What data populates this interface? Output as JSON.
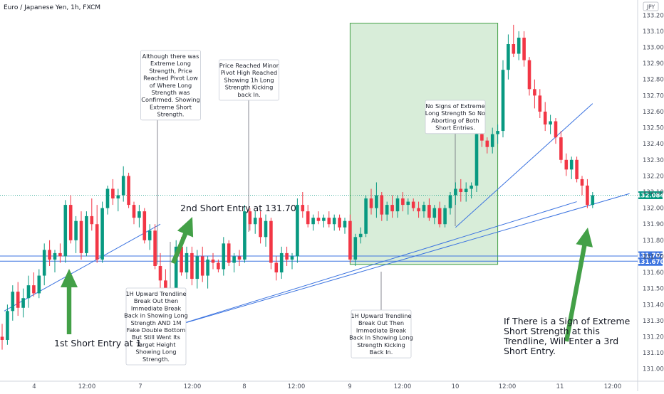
{
  "chart_data": {
    "type": "candlestick",
    "title": "Euro / Japanese Yen, 1h, FXCM",
    "currency": "JPY",
    "x_tick_labels": [
      "4",
      "12:00",
      "7",
      "12:00",
      "8",
      "12:00",
      "9",
      "12:00",
      "10",
      "12:00",
      "11",
      "12:00"
    ],
    "y_tick_labels": [
      "133.200",
      "133.100",
      "133.000",
      "132.900",
      "132.800",
      "132.700",
      "132.600",
      "132.500",
      "132.400",
      "132.300",
      "132.200",
      "132.100",
      "132.000",
      "131.900",
      "131.800",
      "131.700",
      "131.600",
      "131.500",
      "131.400",
      "131.300",
      "131.200",
      "131.100",
      "131.000"
    ],
    "ylim": [
      130.95,
      133.25
    ],
    "colors": {
      "up": "#089981",
      "down": "#f23645",
      "trendline": "#3b73e0",
      "zone_fill": "#c8e6c9",
      "zone_stroke": "#43a047",
      "arrow": "#43a047"
    },
    "last_price_label": "132.084",
    "price_levels": [
      {
        "label": "131.702",
        "value": 131.702
      },
      {
        "label": "131.670",
        "value": 131.67
      }
    ],
    "trendlines": [
      {
        "from": [
          0.4,
          131.36
        ],
        "to": [
          30,
          131.9
        ]
      },
      {
        "from": [
          32,
          131.26
        ],
        "to": [
          109,
          132.04
        ]
      },
      {
        "from": [
          32,
          131.26
        ],
        "to": [
          119,
          132.09
        ]
      },
      {
        "from": [
          86,
          131.88
        ],
        "to": [
          112,
          132.65
        ]
      }
    ],
    "zone": {
      "x0": 66,
      "x1": 94,
      "y0": 131.65,
      "y1": 133.15
    },
    "candles": [
      [
        131.2,
        131.28,
        131.12,
        131.18
      ],
      [
        131.18,
        131.4,
        131.15,
        131.36
      ],
      [
        131.36,
        131.52,
        131.3,
        131.48
      ],
      [
        131.48,
        131.54,
        131.33,
        131.38
      ],
      [
        131.38,
        131.5,
        131.32,
        131.44
      ],
      [
        131.44,
        131.58,
        131.38,
        131.52
      ],
      [
        131.52,
        131.6,
        131.45,
        131.47
      ],
      [
        131.47,
        131.62,
        131.44,
        131.58
      ],
      [
        131.58,
        131.78,
        131.52,
        131.74
      ],
      [
        131.74,
        131.8,
        131.64,
        131.68
      ],
      [
        131.68,
        131.74,
        131.6,
        131.72
      ],
      [
        131.72,
        131.78,
        131.66,
        131.7
      ],
      [
        131.7,
        132.05,
        131.66,
        132.02
      ],
      [
        132.02,
        132.08,
        131.78,
        131.8
      ],
      [
        131.8,
        131.95,
        131.72,
        131.92
      ],
      [
        131.92,
        131.98,
        131.68,
        131.72
      ],
      [
        131.72,
        131.98,
        131.7,
        131.95
      ],
      [
        131.95,
        132.06,
        131.86,
        131.9
      ],
      [
        131.9,
        132.02,
        131.66,
        131.68
      ],
      [
        131.68,
        132.04,
        131.66,
        132.0
      ],
      [
        132.0,
        132.14,
        131.96,
        132.12
      ],
      [
        132.12,
        132.18,
        132.02,
        132.06
      ],
      [
        132.06,
        132.12,
        131.98,
        132.08
      ],
      [
        132.08,
        132.26,
        132.04,
        132.2
      ],
      [
        132.2,
        132.22,
        132.0,
        132.02
      ],
      [
        132.02,
        132.04,
        131.9,
        131.94
      ],
      [
        131.94,
        132.02,
        131.88,
        131.98
      ],
      [
        131.98,
        132.0,
        131.78,
        131.8
      ],
      [
        131.8,
        131.9,
        131.74,
        131.86
      ],
      [
        131.86,
        131.9,
        131.62,
        131.64
      ],
      [
        131.64,
        131.72,
        131.48,
        131.55
      ],
      [
        131.55,
        131.62,
        131.35,
        131.4
      ],
      [
        131.4,
        131.44,
        131.27,
        131.32
      ],
      [
        131.32,
        131.8,
        131.3,
        131.76
      ],
      [
        131.76,
        131.82,
        131.58,
        131.6
      ],
      [
        131.6,
        131.76,
        131.56,
        131.72
      ],
      [
        131.72,
        131.76,
        131.52,
        131.56
      ],
      [
        131.56,
        131.74,
        131.5,
        131.7
      ],
      [
        131.7,
        131.76,
        131.54,
        131.58
      ],
      [
        131.58,
        131.7,
        131.5,
        131.68
      ],
      [
        131.68,
        131.72,
        131.62,
        131.66
      ],
      [
        131.66,
        131.68,
        131.6,
        131.62
      ],
      [
        131.62,
        131.82,
        131.58,
        131.78
      ],
      [
        131.78,
        131.8,
        131.64,
        131.66
      ],
      [
        131.66,
        131.72,
        131.6,
        131.7
      ],
      [
        131.7,
        131.74,
        131.64,
        131.68
      ],
      [
        131.68,
        132.02,
        131.66,
        131.98
      ],
      [
        131.98,
        132.0,
        131.86,
        131.9
      ],
      [
        131.9,
        131.98,
        131.84,
        131.94
      ],
      [
        131.94,
        131.98,
        131.78,
        131.82
      ],
      [
        131.82,
        131.96,
        131.76,
        131.92
      ],
      [
        131.92,
        131.94,
        131.62,
        131.66
      ],
      [
        131.66,
        131.7,
        131.55,
        131.6
      ],
      [
        131.6,
        131.76,
        131.56,
        131.72
      ],
      [
        131.72,
        131.76,
        131.64,
        131.68
      ],
      [
        131.68,
        131.72,
        131.62,
        131.7
      ],
      [
        131.7,
        132.06,
        131.66,
        132.02
      ],
      [
        132.02,
        132.1,
        131.94,
        131.98
      ],
      [
        131.98,
        132.02,
        131.88,
        131.9
      ],
      [
        131.9,
        131.96,
        131.86,
        131.94
      ],
      [
        131.94,
        131.98,
        131.9,
        131.92
      ],
      [
        131.92,
        131.96,
        131.88,
        131.94
      ],
      [
        131.94,
        131.98,
        131.88,
        131.9
      ],
      [
        131.9,
        131.96,
        131.86,
        131.94
      ],
      [
        131.94,
        131.96,
        131.86,
        131.88
      ],
      [
        131.88,
        131.94,
        131.84,
        131.92
      ],
      [
        131.92,
        131.96,
        131.66,
        131.68
      ],
      [
        131.68,
        131.84,
        131.64,
        131.82
      ],
      [
        131.82,
        131.88,
        131.78,
        131.84
      ],
      [
        131.84,
        132.08,
        131.82,
        132.06
      ],
      [
        132.06,
        132.12,
        131.96,
        132.0
      ],
      [
        132.0,
        132.16,
        131.94,
        132.08
      ],
      [
        132.08,
        132.1,
        131.92,
        131.96
      ],
      [
        131.96,
        132.04,
        131.92,
        132.02
      ],
      [
        132.02,
        132.08,
        131.94,
        131.98
      ],
      [
        131.98,
        132.08,
        131.94,
        132.06
      ],
      [
        132.06,
        132.1,
        131.98,
        132.02
      ],
      [
        132.02,
        132.06,
        131.96,
        132.04
      ],
      [
        132.04,
        132.06,
        131.98,
        132.0
      ],
      [
        132.0,
        132.04,
        131.94,
        131.98
      ],
      [
        131.98,
        132.04,
        131.94,
        132.02
      ],
      [
        132.02,
        132.06,
        131.92,
        131.94
      ],
      [
        131.94,
        132.02,
        131.9,
        132.0
      ],
      [
        132.0,
        132.04,
        131.88,
        131.9
      ],
      [
        131.9,
        132.02,
        131.88,
        132.0
      ],
      [
        132.0,
        132.1,
        131.96,
        132.08
      ],
      [
        132.08,
        132.16,
        132.02,
        132.12
      ],
      [
        132.12,
        132.18,
        132.04,
        132.1
      ],
      [
        132.1,
        132.16,
        132.04,
        132.12
      ],
      [
        132.12,
        132.16,
        132.06,
        132.14
      ],
      [
        132.14,
        132.5,
        132.1,
        132.46
      ],
      [
        132.46,
        132.5,
        132.38,
        132.42
      ],
      [
        132.42,
        132.44,
        132.34,
        132.38
      ],
      [
        132.38,
        132.5,
        132.34,
        132.46
      ],
      [
        132.46,
        132.52,
        132.4,
        132.48
      ],
      [
        132.48,
        132.92,
        132.44,
        132.86
      ],
      [
        132.86,
        133.08,
        132.8,
        133.02
      ],
      [
        133.02,
        133.14,
        132.94,
        132.96
      ],
      [
        132.96,
        133.1,
        132.92,
        133.06
      ],
      [
        133.06,
        133.1,
        132.88,
        132.92
      ],
      [
        132.92,
        132.94,
        132.7,
        132.74
      ],
      [
        132.74,
        132.8,
        132.62,
        132.7
      ],
      [
        132.7,
        132.74,
        132.56,
        132.6
      ],
      [
        132.6,
        132.66,
        132.48,
        132.52
      ],
      [
        132.52,
        132.58,
        132.46,
        132.54
      ],
      [
        132.54,
        132.56,
        132.4,
        132.44
      ],
      [
        132.44,
        132.48,
        132.28,
        132.3
      ],
      [
        132.3,
        132.34,
        132.2,
        132.24
      ],
      [
        132.24,
        132.32,
        132.18,
        132.3
      ],
      [
        132.3,
        132.32,
        132.16,
        132.18
      ],
      [
        132.18,
        132.2,
        132.08,
        132.14
      ],
      [
        132.14,
        132.18,
        132.0,
        132.02
      ],
      [
        132.02,
        132.1,
        132.0,
        132.08
      ]
    ]
  },
  "annotations": [
    {
      "id": "note-extreme-long",
      "lines": [
        "Although there was",
        "Extreme Long",
        "Strength, Price",
        "Reached Pivot Low",
        "of Where Long",
        "Strength was",
        "Confirmed. Showing",
        "Extreme Short",
        "Strength."
      ]
    },
    {
      "id": "note-minor-pivot",
      "lines": [
        "Price Reached Minor",
        "Pivot High Reached",
        "Showing 1h Long",
        "Strength Kicking",
        "back In."
      ]
    },
    {
      "id": "note-no-signs",
      "lines": [
        "No Signs of Extreme",
        "Long Strength So No",
        "Aborting of Both",
        "Short Entries."
      ]
    },
    {
      "id": "note-1h-fake",
      "lines": [
        "1H Upward Trendline",
        "Break Out then",
        "Immediate Break",
        "Back in Showing Long",
        "Strength AND 1M",
        "Fake Double Bottom",
        "But Still Went Its",
        "Target Height",
        "Showing Long",
        "Strength."
      ]
    },
    {
      "id": "note-1h-break",
      "lines": [
        "1H Upward Trendline",
        "Break Out Then",
        "Immediate Break",
        "Back In Showing Long",
        "Strength Kicking",
        "Back In."
      ]
    }
  ],
  "big_notes": {
    "first_entry": "1st Short Entry at 1",
    "second_entry": "2nd Short Entry at 131.70",
    "third_entry": [
      "If There is a Sign of Extreme",
      "Short Strength at this",
      "Trendline, Will Enter a 3rd",
      "Short Entry."
    ]
  }
}
